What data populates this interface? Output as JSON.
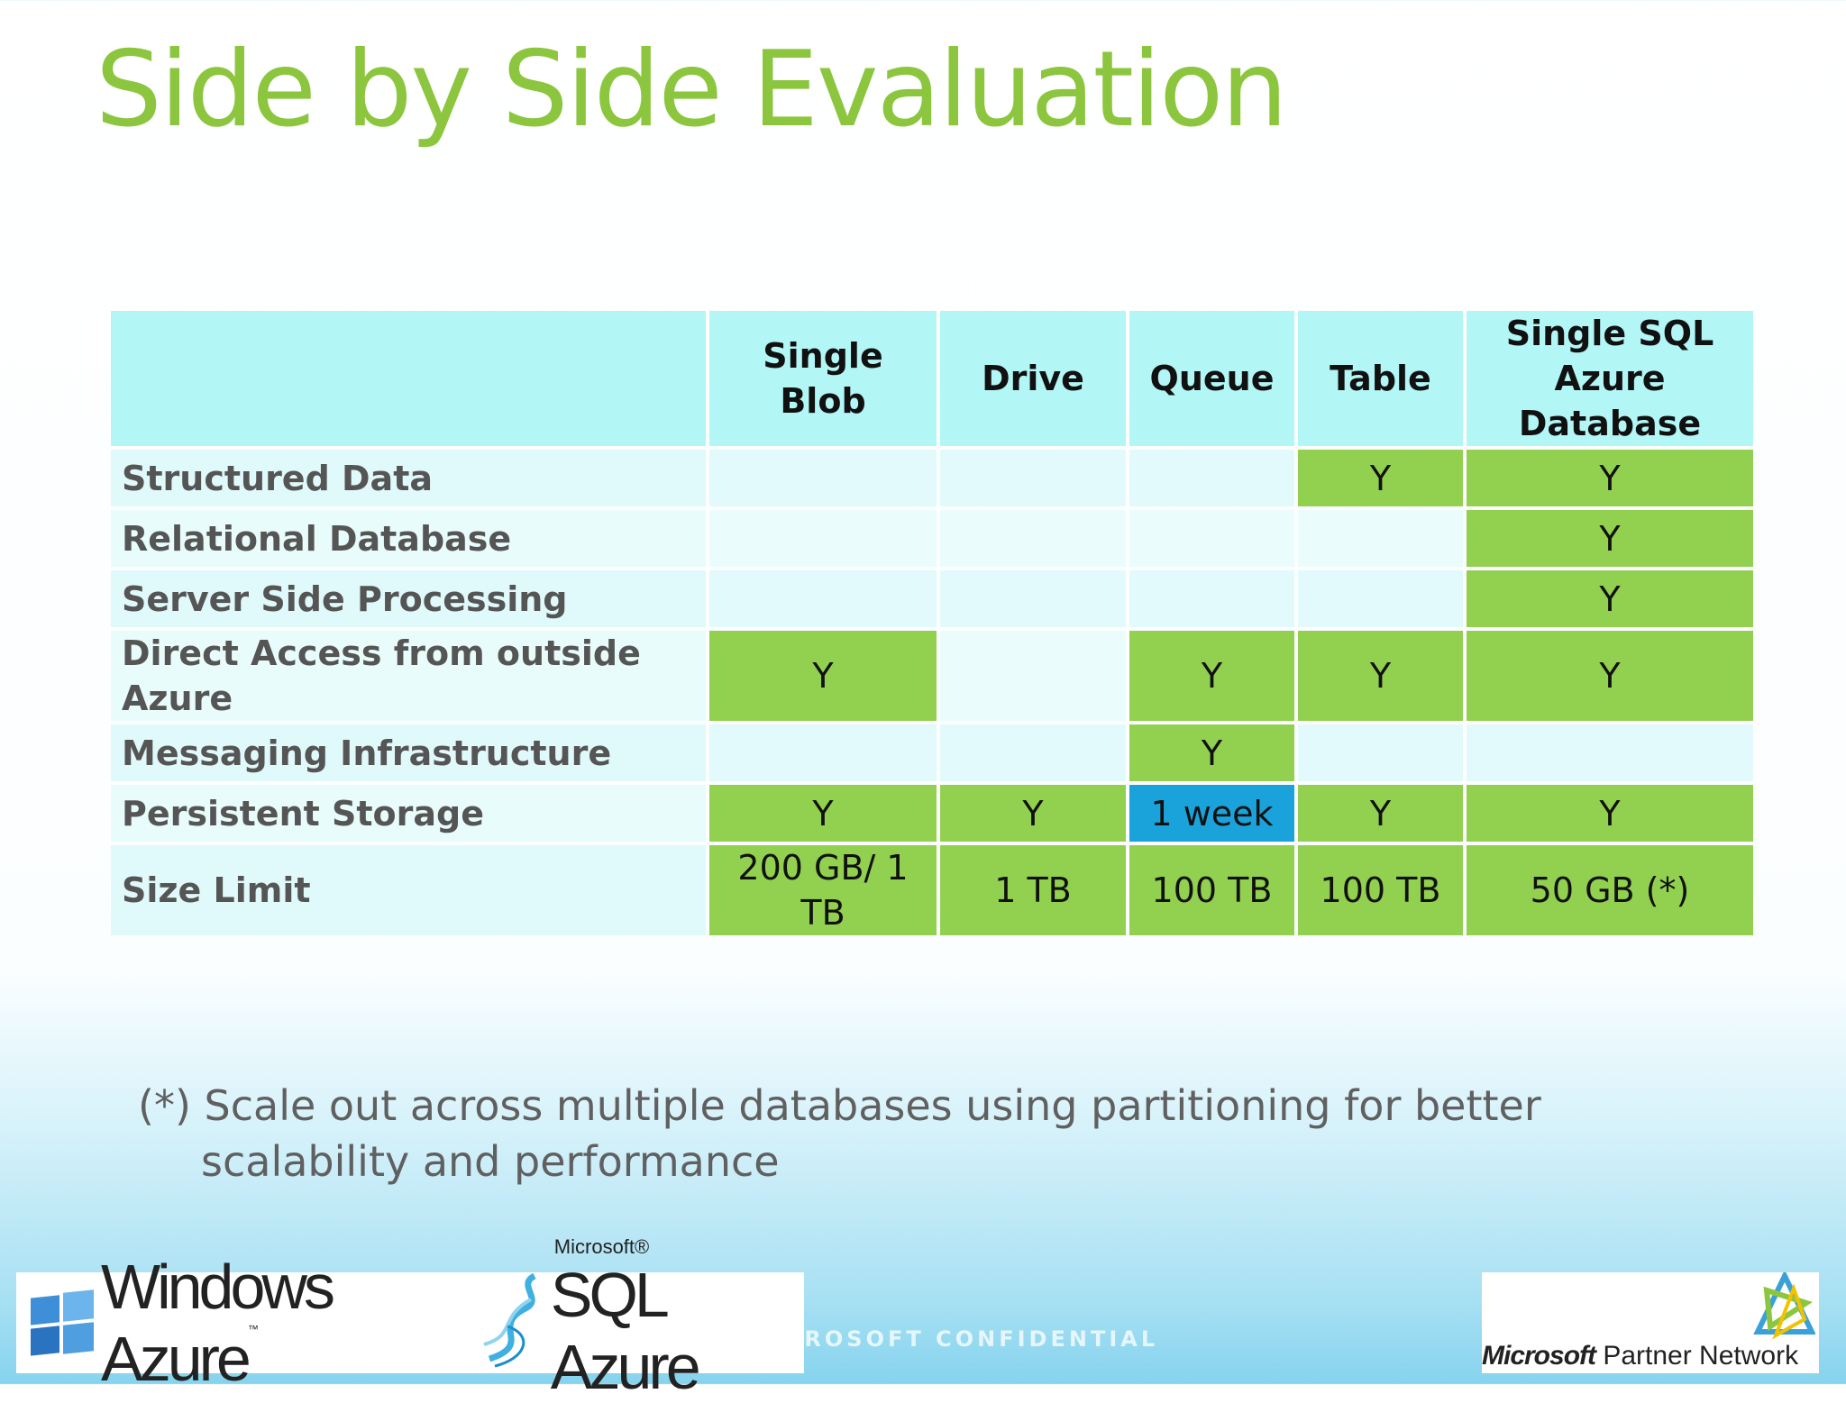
{
  "slide": {
    "title": "Side by Side Evaluation",
    "footnote_line1": "(*) Scale out across multiple databases using partitioning for better",
    "footnote_line2": "scalability and performance",
    "confidential": "MICROSOFT CONFIDENTIAL"
  },
  "table": {
    "headers": [
      "",
      "Single Blob",
      "Drive",
      "Queue",
      "Table",
      "Single SQL Azure Database"
    ],
    "rows": [
      {
        "label": "Structured Data",
        "cells": [
          "",
          "",
          "",
          "Y",
          "Y"
        ]
      },
      {
        "label": "Relational Database",
        "cells": [
          "",
          "",
          "",
          "",
          "Y"
        ]
      },
      {
        "label": "Server Side Processing",
        "cells": [
          "",
          "",
          "",
          "",
          "Y"
        ]
      },
      {
        "label": "Direct Access from outside Azure",
        "cells": [
          "Y",
          "",
          "Y",
          "Y",
          "Y"
        ]
      },
      {
        "label": "Messaging Infrastructure",
        "cells": [
          "",
          "",
          "Y",
          "",
          ""
        ]
      },
      {
        "label": "Persistent Storage",
        "cells": [
          "Y",
          "Y",
          "1 week",
          "Y",
          "Y"
        ]
      },
      {
        "label": "Size Limit",
        "cells": [
          "200 GB/ 1 TB",
          "1 TB",
          "100 TB",
          "100 TB",
          "50 GB (*)"
        ]
      }
    ]
  },
  "logos": {
    "windows_azure": "Windows Azure",
    "windows_azure_tm": "™",
    "sql_microsoft": "Microsoft®",
    "sql_azure": "SQL Azure",
    "partner_microsoft": "Microsoft",
    "partner_network": "Partner Network"
  },
  "colors": {
    "title_green": "#8cc63f",
    "cell_green": "#92d050",
    "cell_blue": "#1aa3da",
    "header_cyan": "#b2f6f6"
  }
}
